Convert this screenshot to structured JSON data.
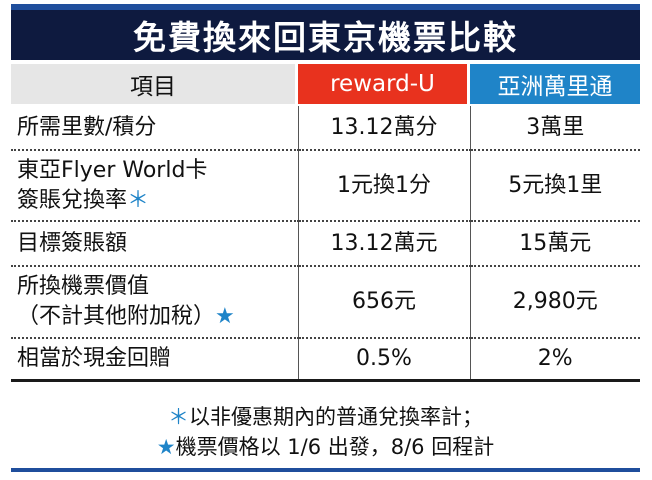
{
  "title": "免費換來回東京機票比較",
  "header": {
    "item": "項目",
    "reward_u": "reward-U",
    "asia_miles": "亞洲萬里通"
  },
  "colors": {
    "title_bg": "#0e1a3f",
    "reward_u_header": "#e8321e",
    "asia_miles_header": "#1f84c8",
    "item_header": "#e6e6e6"
  },
  "rows": [
    {
      "label_line1": "所需里數/積分",
      "label_line2": "",
      "mark": "",
      "reward_u": "13.12萬分",
      "asia_miles": "3萬里"
    },
    {
      "label_line1": "東亞Flyer World卡",
      "label_line2": "簽賬兌換率",
      "mark": "＊",
      "reward_u": "1元換1分",
      "asia_miles": "5元換1里"
    },
    {
      "label_line1": "目標簽賬額",
      "label_line2": "",
      "mark": "",
      "reward_u": "13.12萬元",
      "asia_miles": "15萬元"
    },
    {
      "label_line1": "所換機票價值",
      "label_line2": "（不計其他附加稅）",
      "mark": "★",
      "reward_u": "656元",
      "asia_miles": "2,980元"
    },
    {
      "label_line1": "相當於現金回贈",
      "label_line2": "",
      "mark": "",
      "reward_u": "0.5%",
      "asia_miles": "2%"
    }
  ],
  "notes": {
    "note1_mark": "＊",
    "note1": "以非優惠期內的普通兌換率計；",
    "note2_mark": "★",
    "note2": "機票價格以 1/6 出發，8/6 回程計"
  }
}
